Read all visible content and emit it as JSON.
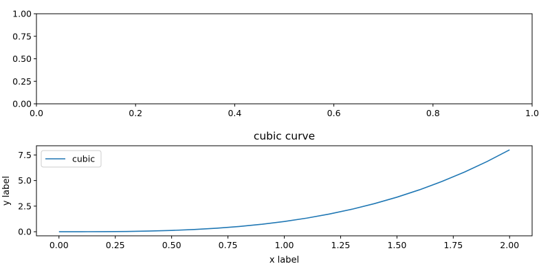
{
  "chart_data": [
    {
      "type": "line",
      "title": "",
      "xlabel": "",
      "ylabel": "",
      "xlim": [
        0.0,
        1.0
      ],
      "ylim": [
        0.0,
        1.0
      ],
      "xticks": [
        "0.0",
        "0.2",
        "0.4",
        "0.6",
        "0.8",
        "1.0"
      ],
      "yticks": [
        "0.00",
        "0.25",
        "0.50",
        "0.75",
        "1.00"
      ],
      "series": [],
      "grid": false
    },
    {
      "type": "line",
      "title": "cubic curve",
      "xlabel": "x label",
      "ylabel": "y label",
      "xlim": [
        -0.1,
        2.1
      ],
      "ylim": [
        -0.4,
        8.4
      ],
      "xticks": [
        "0.00",
        "0.25",
        "0.50",
        "0.75",
        "1.00",
        "1.25",
        "1.50",
        "1.75",
        "2.00"
      ],
      "yticks": [
        "0.0",
        "2.5",
        "5.0",
        "7.5"
      ],
      "legend": "upper-left",
      "grid": false,
      "series": [
        {
          "name": "cubic",
          "color": "#1f77b4",
          "x": [
            0.0,
            0.1,
            0.2,
            0.3,
            0.4,
            0.5,
            0.6,
            0.7,
            0.8,
            0.9,
            1.0,
            1.1,
            1.2,
            1.3,
            1.4,
            1.5,
            1.6,
            1.7,
            1.8,
            1.9,
            2.0
          ],
          "y": [
            0.0,
            0.001,
            0.008,
            0.027,
            0.064,
            0.125,
            0.216,
            0.343,
            0.512,
            0.729,
            1.0,
            1.331,
            1.728,
            2.197,
            2.744,
            3.375,
            4.096,
            4.913,
            5.832,
            6.859,
            8.0
          ]
        }
      ]
    }
  ]
}
